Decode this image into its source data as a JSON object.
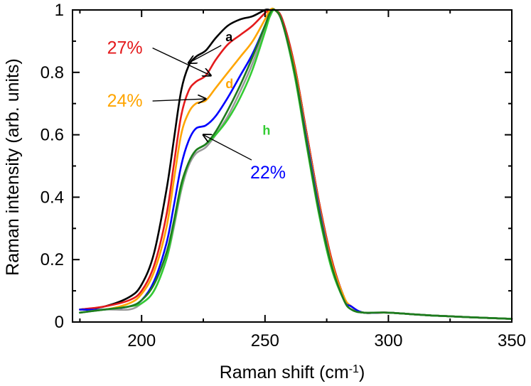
{
  "chart_data": {
    "type": "line",
    "title": "",
    "xlabel": "Raman shift (cm",
    "xlabel_sup": "-1",
    "xlabel_end": ")",
    "ylabel": "Raman intensity (arb. units)",
    "xlim": [
      172,
      350
    ],
    "ylim": [
      0,
      1
    ],
    "xticks": [
      200,
      250,
      300,
      350
    ],
    "yticks": [
      0,
      0.2,
      0.4,
      0.6,
      0.8,
      1
    ],
    "ytick_labels": [
      "0",
      "0.2",
      "0.4",
      "0.6",
      "0.8",
      "1"
    ],
    "grid": false,
    "series": [
      {
        "color": "#000000",
        "x": [
          175,
          185,
          195,
          200,
          205,
          210,
          213,
          216,
          219,
          222,
          226,
          230,
          235,
          240,
          245,
          250,
          252,
          254,
          257,
          262,
          267,
          272,
          277,
          282,
          285,
          290,
          300,
          320,
          350
        ],
        "y": [
          0.04,
          0.05,
          0.08,
          0.12,
          0.22,
          0.42,
          0.58,
          0.74,
          0.82,
          0.85,
          0.87,
          0.91,
          0.95,
          0.97,
          0.98,
          1.0,
          1.0,
          1.0,
          0.97,
          0.82,
          0.6,
          0.38,
          0.2,
          0.08,
          0.05,
          0.03,
          0.03,
          0.02,
          0.01
        ]
      },
      {
        "color": "#e41a1c",
        "x": [
          175,
          185,
          195,
          200,
          205,
          210,
          213,
          216,
          219,
          222,
          226,
          230,
          235,
          240,
          245,
          250,
          252,
          254,
          257,
          262,
          267,
          272,
          277,
          282,
          285,
          290,
          300,
          320,
          350
        ],
        "y": [
          0.04,
          0.05,
          0.07,
          0.1,
          0.18,
          0.34,
          0.5,
          0.66,
          0.74,
          0.77,
          0.79,
          0.84,
          0.89,
          0.92,
          0.95,
          0.99,
          1.0,
          1.0,
          0.97,
          0.82,
          0.6,
          0.38,
          0.2,
          0.08,
          0.05,
          0.03,
          0.03,
          0.02,
          0.01
        ]
      },
      {
        "color": "#ffa500",
        "x": [
          175,
          185,
          195,
          200,
          205,
          210,
          213,
          216,
          219,
          222,
          226,
          230,
          235,
          240,
          245,
          250,
          252,
          254,
          257,
          262,
          267,
          272,
          277,
          282,
          285,
          290,
          300,
          320,
          350
        ],
        "y": [
          0.04,
          0.04,
          0.06,
          0.09,
          0.16,
          0.3,
          0.45,
          0.6,
          0.67,
          0.7,
          0.71,
          0.75,
          0.8,
          0.85,
          0.9,
          0.97,
          1.0,
          1.0,
          0.96,
          0.81,
          0.59,
          0.37,
          0.19,
          0.08,
          0.05,
          0.03,
          0.03,
          0.02,
          0.01
        ]
      },
      {
        "color": "#0000ff",
        "x": [
          175,
          185,
          195,
          200,
          205,
          210,
          213,
          216,
          219,
          222,
          226,
          230,
          235,
          240,
          245,
          250,
          252,
          254,
          257,
          262,
          267,
          272,
          277,
          282,
          285,
          290,
          300,
          320,
          350
        ],
        "y": [
          0.04,
          0.04,
          0.05,
          0.07,
          0.13,
          0.25,
          0.37,
          0.5,
          0.58,
          0.62,
          0.63,
          0.66,
          0.72,
          0.79,
          0.86,
          0.95,
          0.99,
          1.0,
          0.96,
          0.8,
          0.58,
          0.36,
          0.18,
          0.07,
          0.05,
          0.03,
          0.03,
          0.02,
          0.01
        ]
      },
      {
        "color": "#999999",
        "x": [
          175,
          185,
          195,
          200,
          205,
          210,
          213,
          216,
          219,
          222,
          226,
          230,
          235,
          240,
          245,
          250,
          252,
          254,
          257,
          262,
          267,
          272,
          277,
          282,
          285,
          290,
          300,
          320,
          350
        ],
        "y": [
          0.03,
          0.04,
          0.04,
          0.06,
          0.1,
          0.2,
          0.3,
          0.42,
          0.5,
          0.54,
          0.56,
          0.6,
          0.66,
          0.74,
          0.83,
          0.94,
          0.98,
          1.0,
          0.96,
          0.79,
          0.57,
          0.35,
          0.18,
          0.07,
          0.04,
          0.03,
          0.03,
          0.02,
          0.01
        ]
      },
      {
        "color": "#33cc33",
        "x": [
          175,
          185,
          195,
          200,
          205,
          210,
          213,
          216,
          219,
          222,
          226,
          230,
          235,
          240,
          245,
          250,
          252,
          254,
          257,
          262,
          267,
          272,
          277,
          282,
          285,
          290,
          300,
          320,
          350
        ],
        "y": [
          0.03,
          0.04,
          0.05,
          0.06,
          0.1,
          0.2,
          0.31,
          0.43,
          0.51,
          0.55,
          0.57,
          0.6,
          0.65,
          0.72,
          0.81,
          0.93,
          0.98,
          1.0,
          0.96,
          0.79,
          0.56,
          0.34,
          0.17,
          0.07,
          0.04,
          0.03,
          0.03,
          0.02,
          0.01
        ]
      },
      {
        "color": "#1e7b1e",
        "x": [
          175,
          185,
          195,
          200,
          205,
          210,
          213,
          216,
          219,
          222,
          226,
          230,
          235,
          240,
          245,
          250,
          252,
          254,
          257,
          262,
          267,
          272,
          277,
          282,
          285,
          290,
          300,
          320,
          350
        ],
        "y": [
          0.03,
          0.04,
          0.05,
          0.07,
          0.12,
          0.22,
          0.32,
          0.44,
          0.51,
          0.55,
          0.57,
          0.61,
          0.68,
          0.76,
          0.85,
          0.95,
          0.99,
          1.0,
          0.96,
          0.8,
          0.57,
          0.35,
          0.18,
          0.07,
          0.04,
          0.03,
          0.03,
          0.02,
          0.01
        ]
      }
    ],
    "annotations": [
      {
        "text": "27%",
        "color": "#e41a1c",
        "x": 186,
        "y": 0.86,
        "arrow_to": [
          228,
          0.79
        ]
      },
      {
        "text": "24%",
        "color": "#ffa500",
        "x": 186,
        "y": 0.69,
        "arrow_to": [
          226,
          0.715
        ]
      },
      {
        "text": "22%",
        "color": "#0000ff",
        "x": 244,
        "y": 0.46,
        "arrow_to": [
          225,
          0.6
        ]
      },
      {
        "text": "a",
        "color": "#000000",
        "x": 234,
        "y": 0.9,
        "arrow_to": [
          219,
          0.83
        ]
      },
      {
        "text": "d",
        "color": "#ffa500",
        "x": 234,
        "y": 0.75
      },
      {
        "text": "h",
        "color": "#33cc33",
        "x": 249,
        "y": 0.6
      }
    ]
  }
}
